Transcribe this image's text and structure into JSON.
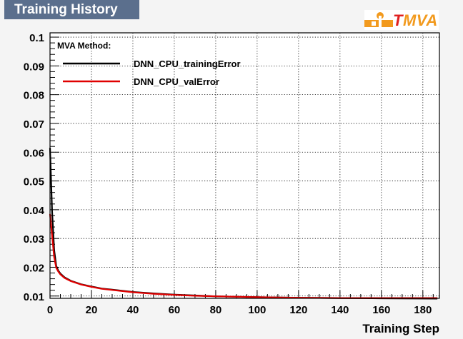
{
  "header": {
    "title": "Training History"
  },
  "logo": {
    "text_t": "T",
    "text_rest": "MVA"
  },
  "chart_data": {
    "type": "line",
    "title": "Training History",
    "xlabel": "Training Step",
    "ylabel": "",
    "xlim": [
      0,
      188
    ],
    "ylim": [
      0.0092,
      0.1015
    ],
    "x_ticks": [
      0,
      20,
      40,
      60,
      80,
      100,
      120,
      140,
      160,
      180
    ],
    "x_tick_labels": [
      "0",
      "20",
      "40",
      "60",
      "80",
      "100",
      "120",
      "140",
      "160",
      "180"
    ],
    "y_ticks": [
      0.01,
      0.02,
      0.03,
      0.04,
      0.05,
      0.06,
      0.07,
      0.08,
      0.09,
      0.1
    ],
    "y_tick_labels": [
      "0.01",
      "0.02",
      "0.03",
      "0.04",
      "0.05",
      "0.06",
      "0.07",
      "0.08",
      "0.09",
      "0.1"
    ],
    "grid": true,
    "legend": {
      "header": "MVA Method:",
      "position": "top-left",
      "entries": [
        "DNN_CPU_trainingError",
        "DNN_CPU_valError"
      ]
    },
    "series": [
      {
        "name": "DNN_CPU_trainingError",
        "color": "#000000",
        "points": [
          [
            0,
            0.0615
          ],
          [
            1,
            0.0395
          ],
          [
            2,
            0.026
          ],
          [
            3,
            0.0205
          ],
          [
            4,
            0.0188
          ],
          [
            5,
            0.0178
          ],
          [
            7,
            0.0165
          ],
          [
            10,
            0.0153
          ],
          [
            15,
            0.0141
          ],
          [
            20,
            0.0133
          ],
          [
            25,
            0.0126
          ],
          [
            30,
            0.0122
          ],
          [
            40,
            0.0114
          ],
          [
            50,
            0.0109
          ],
          [
            60,
            0.0105
          ],
          [
            70,
            0.0102
          ],
          [
            80,
            0.0099
          ],
          [
            100,
            0.0096
          ],
          [
            120,
            0.0094
          ],
          [
            140,
            0.0093
          ],
          [
            160,
            0.0092
          ],
          [
            187,
            0.0091
          ]
        ]
      },
      {
        "name": "DNN_CPU_valError",
        "color": "#e00000",
        "points": [
          [
            0,
            0.0385
          ],
          [
            1,
            0.031
          ],
          [
            2,
            0.0235
          ],
          [
            3,
            0.0198
          ],
          [
            4,
            0.0185
          ],
          [
            5,
            0.0175
          ],
          [
            7,
            0.0163
          ],
          [
            10,
            0.0152
          ],
          [
            15,
            0.014
          ],
          [
            20,
            0.0132
          ],
          [
            25,
            0.0125
          ],
          [
            30,
            0.0121
          ],
          [
            40,
            0.0113
          ],
          [
            50,
            0.0108
          ],
          [
            60,
            0.0104
          ],
          [
            70,
            0.0101
          ],
          [
            80,
            0.0099
          ],
          [
            100,
            0.0096
          ],
          [
            120,
            0.0094
          ],
          [
            140,
            0.0093
          ],
          [
            160,
            0.0093
          ],
          [
            187,
            0.0093
          ]
        ]
      }
    ]
  }
}
